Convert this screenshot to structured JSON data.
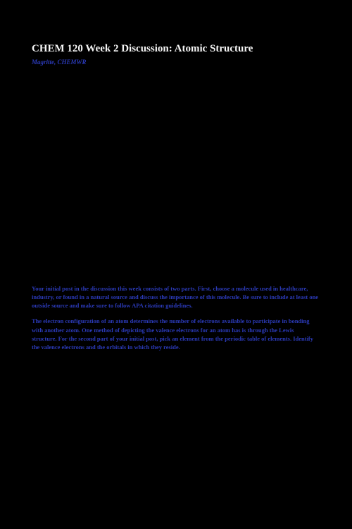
{
  "header": {
    "title": "CHEM 120 Week 2 Discussion: Atomic Structure",
    "subtitle": "Magritte, CHEMWR"
  },
  "content": {
    "paragraph1": "Your initial post in the discussion this week consists of two parts. First, choose a molecule used in healthcare, industry, or found in a natural source and discuss the importance of this molecule. Be sure to include at least one outside source and make sure to follow APA citation guidelines.",
    "paragraph2": "The electron configuration of an atom determines the number of electrons available to participate in bonding with another atom. One method of depicting the valence electrons for an atom has is through the Lewis structure. For the second part of your initial post, pick an element from the periodic table of elements. Identify the valence electrons and the orbitals in which they reside."
  },
  "colors": {
    "background": "#000000",
    "title_color": "#f5f5f5",
    "body_color": "#2b3ab8"
  },
  "typography": {
    "title_fontsize": 15,
    "subtitle_fontsize": 9,
    "body_fontsize": 8.5,
    "font_family": "Georgia, Times New Roman, serif"
  }
}
